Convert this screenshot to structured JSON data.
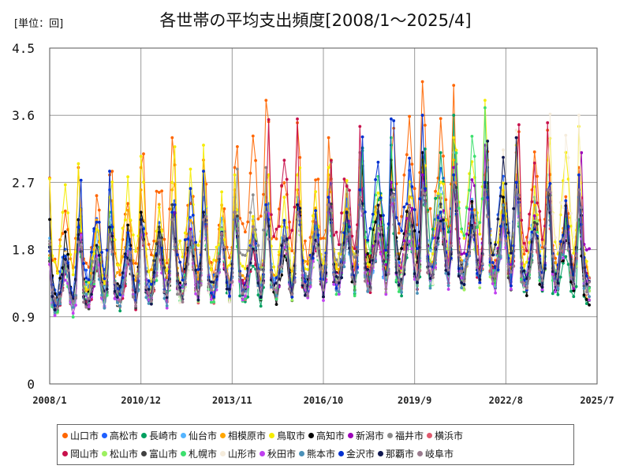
{
  "unit_label": "[単位：回]",
  "title": "各世帯の平均支出頻度[2008/1～2025/4]",
  "chart_data": {
    "type": "line",
    "title": "各世帯の平均支出頻度[2008/1～2025/4]",
    "unit": "回",
    "x_start": "2008/1",
    "x_end": "2025/4",
    "xlim": [
      "2008/1",
      "2025/7"
    ],
    "x_ticks": [
      "2008/1",
      "2010/12",
      "2013/11",
      "2016/10",
      "2019/9",
      "2022/8",
      "2025/7"
    ],
    "ylim": [
      0,
      4.5
    ],
    "y_ticks": [
      "0",
      "0.9",
      "1.8",
      "2.7",
      "3.6",
      "4.5"
    ],
    "grid": true,
    "legend_position": "bottom",
    "series": [
      {
        "name": "山口市",
        "color": "#ff6600",
        "peaks": [
          2.9,
          2.8,
          2.9,
          3.3,
          3.0,
          2.9,
          3.8,
          3.5,
          3.3,
          2.9,
          3.0,
          4.05,
          4.0,
          2.8,
          3.1,
          3.4,
          2.9,
          2.7
        ]
      },
      {
        "name": "高松市",
        "color": "#1f5fff",
        "peaks": [
          2.2,
          2.6,
          2.3,
          2.4,
          2.5,
          2.5,
          2.4,
          2.5,
          2.6,
          2.7,
          2.6,
          3.1,
          3.3,
          2.7,
          3.3,
          2.7,
          2.6,
          2.4
        ]
      },
      {
        "name": "長崎市",
        "color": "#00a060",
        "peaks": [
          1.9,
          2.3,
          2.0,
          2.2,
          2.3,
          2.2,
          2.0,
          2.3,
          2.3,
          2.4,
          3.2,
          2.4,
          3.6,
          2.6,
          2.5,
          2.5,
          2.2,
          2.0
        ]
      },
      {
        "name": "仙台市",
        "color": "#55b4ff",
        "peaks": [
          2.0,
          2.2,
          2.3,
          2.4,
          2.3,
          2.4,
          2.4,
          2.5,
          2.6,
          2.5,
          2.6,
          2.7,
          3.1,
          2.8,
          2.6,
          2.8,
          2.6,
          2.4
        ]
      },
      {
        "name": "相模原市",
        "color": "#ffa500",
        "peaks": [
          2.0,
          2.5,
          2.6,
          2.6,
          2.7,
          2.6,
          2.5,
          2.6,
          2.8,
          2.7,
          2.9,
          2.9,
          3.0,
          2.8,
          2.8,
          2.7,
          2.7,
          2.3
        ]
      },
      {
        "name": "鳥取市",
        "color": "#f5ec00",
        "peaks": [
          2.95,
          2.5,
          3.05,
          2.7,
          3.2,
          2.8,
          2.7,
          2.8,
          2.9,
          3.0,
          3.0,
          3.0,
          3.3,
          3.8,
          3.2,
          3.0,
          3.45,
          2.8
        ]
      },
      {
        "name": "高知市",
        "color": "#000000",
        "peaks": [
          2.2,
          2.1,
          2.3,
          2.2,
          2.3,
          2.2,
          2.3,
          2.2,
          2.4,
          2.5,
          3.0,
          3.1,
          2.8,
          2.7,
          2.7,
          2.4,
          2.5,
          2.0
        ]
      },
      {
        "name": "新潟市",
        "color": "#9c00b8",
        "peaks": [
          1.9,
          2.0,
          2.1,
          2.2,
          2.3,
          2.2,
          2.3,
          2.3,
          2.5,
          2.6,
          2.7,
          2.8,
          2.9,
          3.2,
          2.7,
          2.6,
          2.6,
          3.3
        ]
      },
      {
        "name": "福井市",
        "color": "#8c8c8c",
        "peaks": [
          2.0,
          2.1,
          2.2,
          2.3,
          2.2,
          2.3,
          2.9,
          2.4,
          2.5,
          3.1,
          2.5,
          2.6,
          2.7,
          2.7,
          2.6,
          2.5,
          2.6,
          2.5
        ]
      },
      {
        "name": "横浜市",
        "color": "#e05a6e",
        "peaks": [
          1.9,
          2.1,
          2.1,
          2.2,
          2.2,
          2.2,
          2.3,
          2.3,
          2.4,
          2.5,
          2.5,
          2.6,
          2.7,
          2.5,
          2.6,
          2.5,
          2.5,
          2.4
        ]
      },
      {
        "name": "岡山市",
        "color": "#c8104b",
        "peaks": [
          1.8,
          2.0,
          2.0,
          2.1,
          2.2,
          2.2,
          2.3,
          3.55,
          2.3,
          3.45,
          2.5,
          2.6,
          2.7,
          2.6,
          2.6,
          3.5,
          2.6,
          2.5
        ]
      },
      {
        "name": "松山市",
        "color": "#9cf060",
        "peaks": [
          1.9,
          2.1,
          2.1,
          2.2,
          2.2,
          2.3,
          2.3,
          2.3,
          2.4,
          2.5,
          2.5,
          2.6,
          2.8,
          2.5,
          2.6,
          2.6,
          2.6,
          2.4
        ]
      },
      {
        "name": "富山市",
        "color": "#404040",
        "peaks": [
          1.9,
          2.0,
          2.1,
          2.4,
          2.3,
          2.2,
          2.3,
          2.3,
          2.4,
          2.5,
          2.5,
          2.6,
          2.7,
          2.7,
          2.6,
          2.6,
          2.6,
          2.4
        ]
      },
      {
        "name": "札幌市",
        "color": "#3de06e",
        "peaks": [
          1.8,
          2.0,
          2.1,
          2.1,
          2.2,
          2.2,
          2.2,
          2.3,
          2.3,
          2.4,
          3.3,
          2.5,
          2.6,
          3.7,
          2.6,
          2.5,
          2.5,
          2.3
        ]
      },
      {
        "name": "山形市",
        "color": "#f5ecdc",
        "peaks": [
          1.9,
          2.0,
          2.1,
          2.2,
          2.2,
          2.2,
          2.3,
          2.3,
          2.4,
          2.5,
          2.5,
          2.6,
          2.7,
          2.6,
          3.4,
          2.5,
          3.6,
          2.4
        ]
      },
      {
        "name": "秋田市",
        "color": "#c040f0",
        "peaks": [
          1.8,
          2.0,
          2.0,
          2.1,
          2.2,
          2.2,
          2.2,
          2.3,
          2.3,
          2.4,
          2.4,
          2.5,
          2.6,
          2.5,
          2.5,
          2.5,
          2.5,
          2.3
        ]
      },
      {
        "name": "熊本市",
        "color": "#4a90b8",
        "peaks": [
          1.9,
          2.0,
          2.1,
          2.1,
          2.2,
          2.2,
          2.3,
          2.3,
          2.4,
          2.4,
          2.5,
          2.5,
          2.6,
          2.5,
          2.6,
          2.5,
          2.5,
          2.3
        ]
      },
      {
        "name": "金沢市",
        "color": "#0030d0",
        "peaks": [
          2.1,
          2.85,
          2.2,
          2.3,
          2.85,
          2.3,
          2.4,
          2.4,
          2.5,
          2.6,
          3.55,
          3.6,
          2.8,
          2.7,
          2.7,
          2.6,
          2.8,
          2.6
        ]
      },
      {
        "name": "那覇市",
        "color": "#101850",
        "peaks": [
          2.0,
          2.1,
          2.2,
          2.2,
          2.3,
          2.3,
          2.3,
          2.4,
          2.4,
          2.5,
          2.6,
          2.6,
          2.7,
          2.6,
          3.3,
          2.6,
          2.6,
          2.5
        ]
      },
      {
        "name": "岐阜市",
        "color": "#9a7b8e",
        "peaks": [
          1.9,
          2.0,
          2.1,
          2.2,
          2.2,
          2.3,
          2.3,
          2.3,
          2.4,
          2.5,
          2.5,
          2.6,
          2.7,
          2.6,
          2.6,
          2.6,
          2.6,
          2.4
        ]
      }
    ]
  }
}
